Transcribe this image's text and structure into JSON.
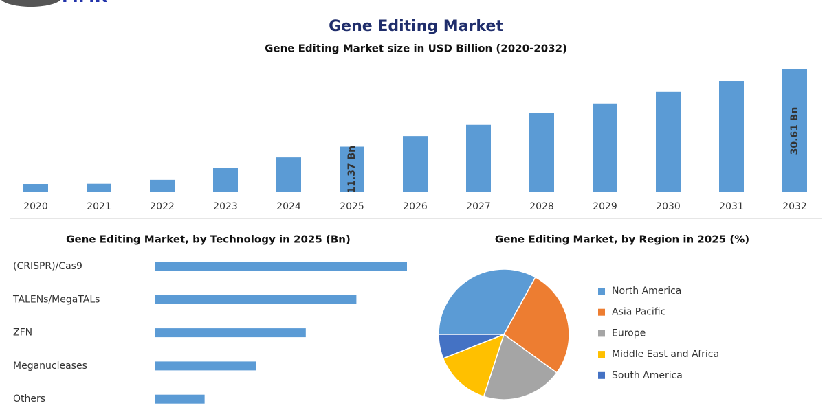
{
  "title": "Gene Editing Market",
  "logo": "MMR",
  "chart_data": [
    {
      "type": "bar",
      "title": "Gene Editing Market size in USD Billion (2020-2032)",
      "categories": [
        "2020",
        "2021",
        "2022",
        "2023",
        "2024",
        "2025",
        "2026",
        "2027",
        "2028",
        "2029",
        "2030",
        "2031",
        "2032"
      ],
      "values": [
        2.05,
        2.1,
        3.1,
        6.0,
        8.7,
        11.37,
        14.0,
        16.8,
        19.7,
        22.1,
        25.0,
        27.7,
        30.61
      ],
      "value_labels": [
        null,
        null,
        null,
        null,
        null,
        "11.37 Bn",
        null,
        null,
        null,
        null,
        null,
        null,
        "30.61 Bn"
      ],
      "color": "#5b9bd5"
    },
    {
      "type": "bar",
      "horizontal": true,
      "title": "Gene Editing Market, by Technology in 2025 (Bn)",
      "categories": [
        "(CRISPR)/Cas9",
        "TALENs/MegaTALs",
        "ZFN",
        "Meganucleases",
        "Others"
      ],
      "values": [
        3.79,
        3.03,
        2.27,
        1.52,
        0.75
      ],
      "color": "#5b9bd5"
    },
    {
      "type": "pie",
      "title": "Gene Editing Market, by Region in 2025 (%)",
      "categories": [
        "North America",
        "Asia Pacific",
        "Europe",
        "Middle East and Africa",
        "South America"
      ],
      "values": [
        33,
        27,
        20,
        14,
        6
      ],
      "colors": [
        "#5b9bd5",
        "#ed7d31",
        "#a5a5a5",
        "#ffc000",
        "#4472c4"
      ]
    }
  ]
}
